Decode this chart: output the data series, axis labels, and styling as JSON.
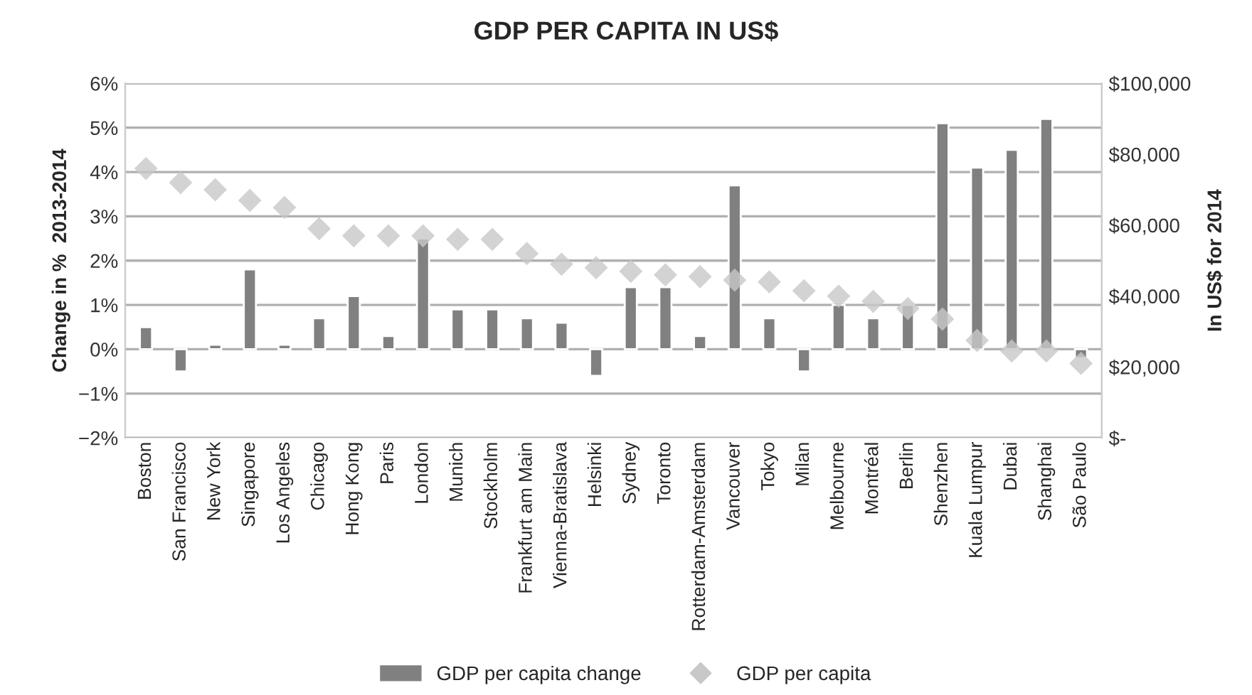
{
  "chart_data": {
    "type": "bar",
    "title": "GDP PER CAPITA IN US$",
    "ylabel": "Change in %  2013-2014",
    "y2label": "In US$ for 2014",
    "categories": [
      "Boston",
      "San Francisco",
      "New York",
      "Singapore",
      "Los Angeles",
      "Chicago",
      "Hong Kong",
      "Paris",
      "London",
      "Munich",
      "Stockholm",
      "Frankfurt am Main",
      "Vienna-Bratislava",
      "Helsinki",
      "Sydney",
      "Toronto",
      "Rotterdam-Amsterdam",
      "Vancouver",
      "Tokyo",
      "Milan",
      "Melbourne",
      "Montréal",
      "Berlin",
      "Shenzhen",
      "Kuala Lumpur",
      "Dubai",
      "Shanghai",
      "São Paulo"
    ],
    "series": [
      {
        "name": "GDP per capita change",
        "color": "#808080",
        "values": [
          0.5,
          -0.5,
          0.1,
          1.8,
          0.1,
          0.7,
          1.2,
          0.3,
          2.5,
          0.9,
          0.9,
          0.7,
          0.6,
          -0.6,
          1.4,
          1.4,
          0.3,
          3.7,
          0.7,
          -0.5,
          1.0,
          0.7,
          1.0,
          5.1,
          4.1,
          4.5,
          5.2,
          -0.2
        ]
      },
      {
        "name": "GDP per capita",
        "type": "scatter",
        "axis": "y2",
        "marker": "diamond",
        "color": "#c8c8c8",
        "values": [
          76000,
          72000,
          70000,
          67000,
          65000,
          59000,
          57000,
          57000,
          57000,
          56000,
          56000,
          52000,
          49000,
          48000,
          47000,
          46000,
          45500,
          44500,
          44000,
          41500,
          40000,
          38500,
          36500,
          33500,
          27500,
          24500,
          24500,
          21000
        ]
      }
    ],
    "ylim": [
      -2,
      6
    ],
    "yticks": [
      {
        "value": -2,
        "label": "−2%"
      },
      {
        "value": -1,
        "label": "−1%"
      },
      {
        "value": 0,
        "label": "0%"
      },
      {
        "value": 1,
        "label": "1%"
      },
      {
        "value": 2,
        "label": "2%"
      },
      {
        "value": 3,
        "label": "3%"
      },
      {
        "value": 4,
        "label": "4%"
      },
      {
        "value": 5,
        "label": "5%"
      },
      {
        "value": 6,
        "label": "6%"
      }
    ],
    "y2lim": [
      0,
      100000
    ],
    "y2ticks": [
      {
        "value": 0,
        "label": "$-"
      },
      {
        "value": 20000,
        "label": "$20,000"
      },
      {
        "value": 40000,
        "label": "$40,000"
      },
      {
        "value": 60000,
        "label": "$60,000"
      },
      {
        "value": 80000,
        "label": "$80,000"
      },
      {
        "value": 100000,
        "label": "$100,000"
      }
    ],
    "grid": "y",
    "legend": "bottom"
  }
}
